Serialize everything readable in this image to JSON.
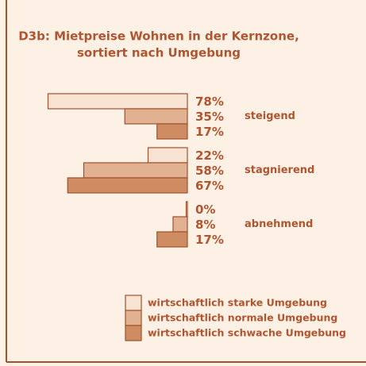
{
  "chart_data": {
    "type": "hbar",
    "title": [
      "D3b: Mietpreise Wohnen in der Kernzone,",
      "sortiert nach Umgebung"
    ],
    "categories": [
      "steigend",
      "stagnierend",
      "abnehmend"
    ],
    "series": [
      {
        "name": "wirtschaftlich starke Umgebung",
        "color": "#f8e3d3",
        "values": [
          78,
          22,
          0
        ],
        "value_labels": [
          "78%",
          "22%",
          "0%"
        ]
      },
      {
        "name": "wirtschaftlich normale Umgebung",
        "color": "#e2b192",
        "values": [
          35,
          58,
          8
        ],
        "value_labels": [
          "35%",
          "58%",
          "8%"
        ]
      },
      {
        "name": "wirtschaftlich schwache Umgebung",
        "color": "#cf8c63",
        "values": [
          17,
          67,
          17
        ],
        "value_labels": [
          "17%",
          "67%",
          "17%"
        ]
      }
    ],
    "xlim": [
      0,
      100
    ]
  }
}
